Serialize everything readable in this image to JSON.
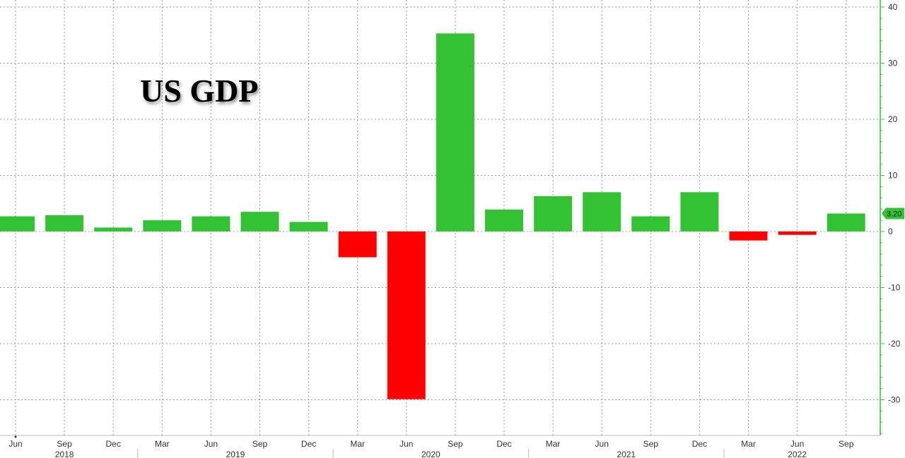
{
  "chart_data": {
    "type": "bar",
    "title": "US GDP",
    "xlabel": "",
    "ylabel": "",
    "categories": [
      "Jun",
      "Sep",
      "Dec",
      "Mar",
      "Jun",
      "Sep",
      "Dec",
      "Mar",
      "Jun",
      "Sep",
      "Dec",
      "Mar",
      "Jun",
      "Sep",
      "Dec",
      "Mar",
      "Jun",
      "Sep"
    ],
    "years": [
      {
        "label": "2018",
        "first_index": 0,
        "last_index": 2
      },
      {
        "label": "2019",
        "first_index": 3,
        "last_index": 6
      },
      {
        "label": "2020",
        "first_index": 7,
        "last_index": 10
      },
      {
        "label": "2021",
        "first_index": 11,
        "last_index": 14
      },
      {
        "label": "2022",
        "first_index": 15,
        "last_index": 17
      }
    ],
    "values": [
      2.7,
      2.9,
      0.7,
      2.0,
      2.7,
      3.5,
      1.7,
      -4.6,
      -29.9,
      35.3,
      3.9,
      6.3,
      7.0,
      2.7,
      7.0,
      -1.6,
      -0.6,
      3.2
    ],
    "ylim": [
      -36,
      40
    ],
    "yticks": [
      40,
      30,
      20,
      10,
      0,
      -10,
      -20,
      -30
    ],
    "y_axis_position": "right",
    "grid": true,
    "last_value_label": "3.20",
    "colors": {
      "positive": "#33c233",
      "negative": "#ff0000",
      "axis": "#33c233",
      "grid": "#999999"
    }
  }
}
